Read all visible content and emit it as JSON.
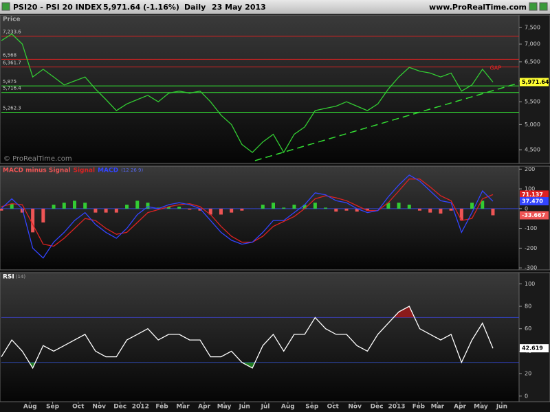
{
  "header": {
    "symbol": "PSI20 - PSI 20 INDEX",
    "quote": "5,971.64 (-1.16%)",
    "period": "Daily",
    "date": "23 May 2013",
    "site": "www.ProRealTime.com",
    "watermark": "© ProRealTime.com"
  },
  "chart_data": [
    {
      "type": "line",
      "title": "Price",
      "log_scale": true,
      "x": [
        0,
        2,
        4,
        6,
        8,
        10,
        12,
        14,
        16,
        18,
        20,
        22,
        24,
        26,
        28,
        30,
        32,
        34,
        36,
        38,
        40,
        42,
        44,
        46,
        48,
        50,
        52,
        54,
        56,
        58,
        60,
        62,
        64,
        66,
        68,
        70,
        72,
        74,
        76,
        78,
        80,
        82,
        84,
        86,
        88,
        90,
        92,
        94
      ],
      "series": [
        {
          "name": "PSI20",
          "color": "#33cc33",
          "values": [
            7100,
            7300,
            7000,
            6100,
            6300,
            6100,
            5900,
            6000,
            6100,
            5800,
            5550,
            5300,
            5450,
            5550,
            5650,
            5500,
            5700,
            5750,
            5700,
            5750,
            5500,
            5200,
            5000,
            4600,
            4450,
            4650,
            4800,
            4450,
            4800,
            4950,
            5300,
            5350,
            5400,
            5500,
            5400,
            5300,
            5450,
            5800,
            6100,
            6350,
            6250,
            6200,
            6100,
            6200,
            5750,
            5900,
            6300,
            5971.64
          ],
          "value_labels": [
            null,
            null,
            null,
            null,
            null,
            null,
            null,
            null,
            null,
            null,
            null,
            null,
            null,
            null,
            null,
            null,
            null,
            null,
            null,
            null,
            null,
            null,
            null,
            null,
            null,
            null,
            null,
            null,
            null,
            null,
            null,
            null,
            null,
            null,
            null,
            null,
            null,
            null,
            null,
            null,
            null,
            null,
            null,
            null,
            null,
            null,
            null,
            "5,971.64"
          ],
          "box_color": "#ffff33"
        }
      ],
      "levels": [
        {
          "value": 7233.6,
          "label": "7,233.6",
          "color": "#dd2222"
        },
        {
          "value": 6568,
          "label": "6,568",
          "color": "#dd2222"
        },
        {
          "value": 6361.7,
          "label": "6,361.7",
          "color": "#dd2222"
        },
        {
          "value": 5875,
          "label": "5,875",
          "color": "#33dd33"
        },
        {
          "value": 5716.4,
          "label": "5,716.4",
          "color": "#33dd33"
        },
        {
          "value": 5262.3,
          "label": "5,262.3",
          "color": "#33dd33"
        }
      ],
      "trendlines": [
        {
          "x": [
            48.5,
            99
          ],
          "y": [
            4300,
            5950
          ],
          "color": "#33dd33",
          "dashed": true
        }
      ],
      "annotations": [
        {
          "text": "GAP",
          "x": 94.5,
          "y": 6330,
          "color": "#ee2222"
        }
      ],
      "xlim": [
        0,
        99
      ],
      "ylim": [
        4250,
        7900
      ],
      "yticks": [
        {
          "value": 4500,
          "label": "4,500"
        },
        {
          "value": 5000,
          "label": "5,000"
        },
        {
          "value": 5500,
          "label": "5,500"
        },
        {
          "value": 6000,
          "label": "6,000"
        },
        {
          "value": 6500,
          "label": "6,500"
        },
        {
          "value": 7000,
          "label": "7,000"
        },
        {
          "value": 7500,
          "label": "7,500"
        }
      ]
    },
    {
      "type": "combo",
      "params": "(12 26 9)",
      "x": [
        0,
        2,
        4,
        6,
        8,
        10,
        12,
        14,
        16,
        18,
        20,
        22,
        24,
        26,
        28,
        30,
        32,
        34,
        36,
        38,
        40,
        42,
        44,
        46,
        48,
        50,
        52,
        54,
        56,
        58,
        60,
        62,
        64,
        66,
        68,
        70,
        72,
        74,
        76,
        78,
        80,
        82,
        84,
        86,
        88,
        90,
        92,
        94
      ],
      "series": [
        {
          "name": "MACD minus Signal",
          "style": "bar",
          "color": "#33cc33",
          "neg_color": "#ee5555",
          "values": [
            -10,
            25,
            -20,
            -120,
            -70,
            20,
            30,
            40,
            30,
            -20,
            -20,
            -20,
            20,
            40,
            30,
            5,
            10,
            10,
            -5,
            -10,
            -30,
            -30,
            -20,
            -10,
            0,
            20,
            30,
            5,
            20,
            20,
            30,
            5,
            -15,
            -10,
            -15,
            -10,
            0,
            30,
            30,
            20,
            -10,
            -20,
            -25,
            -10,
            -60,
            30,
            40,
            -33.667
          ],
          "box_color": "#ee5555"
        },
        {
          "name": "Signal",
          "style": "line",
          "color": "#dd2222",
          "values": [
            10,
            25,
            20,
            -80,
            -180,
            -190,
            -150,
            -100,
            -50,
            -60,
            -100,
            -130,
            -120,
            -70,
            -20,
            -5,
            10,
            20,
            25,
            10,
            -30,
            -90,
            -140,
            -170,
            -170,
            -140,
            -90,
            -65,
            -40,
            0,
            50,
            65,
            55,
            40,
            15,
            -10,
            -10,
            30,
            90,
            150,
            150,
            110,
            65,
            40,
            -60,
            -50,
            50,
            71.137
          ],
          "box_color": "#dd2222"
        },
        {
          "name": "MACD",
          "style": "line",
          "color": "#3344ff",
          "values": [
            0,
            50,
            0,
            -200,
            -250,
            -170,
            -120,
            -60,
            -20,
            -80,
            -120,
            -150,
            -100,
            -30,
            10,
            0,
            20,
            30,
            20,
            0,
            -60,
            -120,
            -160,
            -180,
            -170,
            -120,
            -60,
            -60,
            -20,
            20,
            80,
            70,
            40,
            30,
            0,
            -20,
            -10,
            60,
            120,
            170,
            140,
            90,
            40,
            30,
            -120,
            -20,
            90,
            37.47
          ],
          "value_labels": [
            null,
            null,
            null,
            null,
            null,
            null,
            null,
            null,
            null,
            null,
            null,
            null,
            null,
            null,
            null,
            null,
            null,
            null,
            null,
            null,
            null,
            null,
            null,
            null,
            null,
            null,
            null,
            null,
            null,
            null,
            null,
            null,
            null,
            null,
            null,
            null,
            null,
            null,
            null,
            null,
            null,
            null,
            null,
            null,
            null,
            null,
            null,
            "37.470"
          ],
          "box_color": "#3344ff"
        }
      ],
      "levels": [
        {
          "value": 0,
          "color": "#3344cc"
        }
      ],
      "xlim": [
        0,
        99
      ],
      "ylim": [
        -310,
        215
      ],
      "yticks": [
        -300,
        -200,
        -100,
        0,
        100,
        200
      ]
    },
    {
      "type": "line",
      "title": "RSI",
      "params": "(14)",
      "x": [
        0,
        2,
        4,
        6,
        8,
        10,
        12,
        14,
        16,
        18,
        20,
        22,
        24,
        26,
        28,
        30,
        32,
        34,
        36,
        38,
        40,
        42,
        44,
        46,
        48,
        50,
        52,
        54,
        56,
        58,
        60,
        62,
        64,
        66,
        68,
        70,
        72,
        74,
        76,
        78,
        80,
        82,
        84,
        86,
        88,
        90,
        92,
        94
      ],
      "series": [
        {
          "name": "RSI",
          "color": "#ffffff",
          "values": [
            35,
            50,
            40,
            25,
            45,
            40,
            45,
            50,
            55,
            40,
            35,
            35,
            50,
            55,
            60,
            50,
            55,
            55,
            50,
            50,
            35,
            35,
            40,
            30,
            25,
            45,
            55,
            40,
            55,
            55,
            70,
            60,
            55,
            55,
            45,
            40,
            55,
            65,
            75,
            80,
            60,
            55,
            50,
            55,
            30,
            50,
            65,
            42.619
          ],
          "box_color": "#ffffff"
        }
      ],
      "levels": [
        {
          "value": 70,
          "color": "#3344cc",
          "fill": "#8b1a1a",
          "side": "above"
        },
        {
          "value": 30,
          "color": "#3344cc",
          "fill": "#1f7a1f",
          "side": "below"
        }
      ],
      "xlim": [
        0,
        99
      ],
      "ylim": [
        -5,
        110
      ],
      "yticks": [
        0,
        20,
        40,
        60,
        80,
        100
      ],
      "xticks": [
        {
          "value": 5.5,
          "label": "Aug"
        },
        {
          "value": 9.8,
          "label": "Sep"
        },
        {
          "value": 14.7,
          "label": "Oct"
        },
        {
          "value": 18.7,
          "label": "Nov"
        },
        {
          "value": 22.7,
          "label": "Dec"
        },
        {
          "value": 26.6,
          "label": "2012"
        },
        {
          "value": 30.7,
          "label": "Feb"
        },
        {
          "value": 34.7,
          "label": "Mar"
        },
        {
          "value": 38.8,
          "label": "Apr"
        },
        {
          "value": 42.6,
          "label": "May"
        },
        {
          "value": 46.5,
          "label": "Jun"
        },
        {
          "value": 50.5,
          "label": "Jul"
        },
        {
          "value": 54.8,
          "label": "Aug"
        },
        {
          "value": 59.4,
          "label": "Sep"
        },
        {
          "value": 63.4,
          "label": "Oct"
        },
        {
          "value": 67.6,
          "label": "Nov"
        },
        {
          "value": 71.8,
          "label": "Dec"
        },
        {
          "value": 75.6,
          "label": "2013"
        },
        {
          "value": 79.8,
          "label": "Feb"
        },
        {
          "value": 83.4,
          "label": "Mar"
        },
        {
          "value": 87.7,
          "label": "Apr"
        },
        {
          "value": 91.7,
          "label": "May"
        },
        {
          "value": 95.7,
          "label": "Jun"
        }
      ]
    }
  ]
}
